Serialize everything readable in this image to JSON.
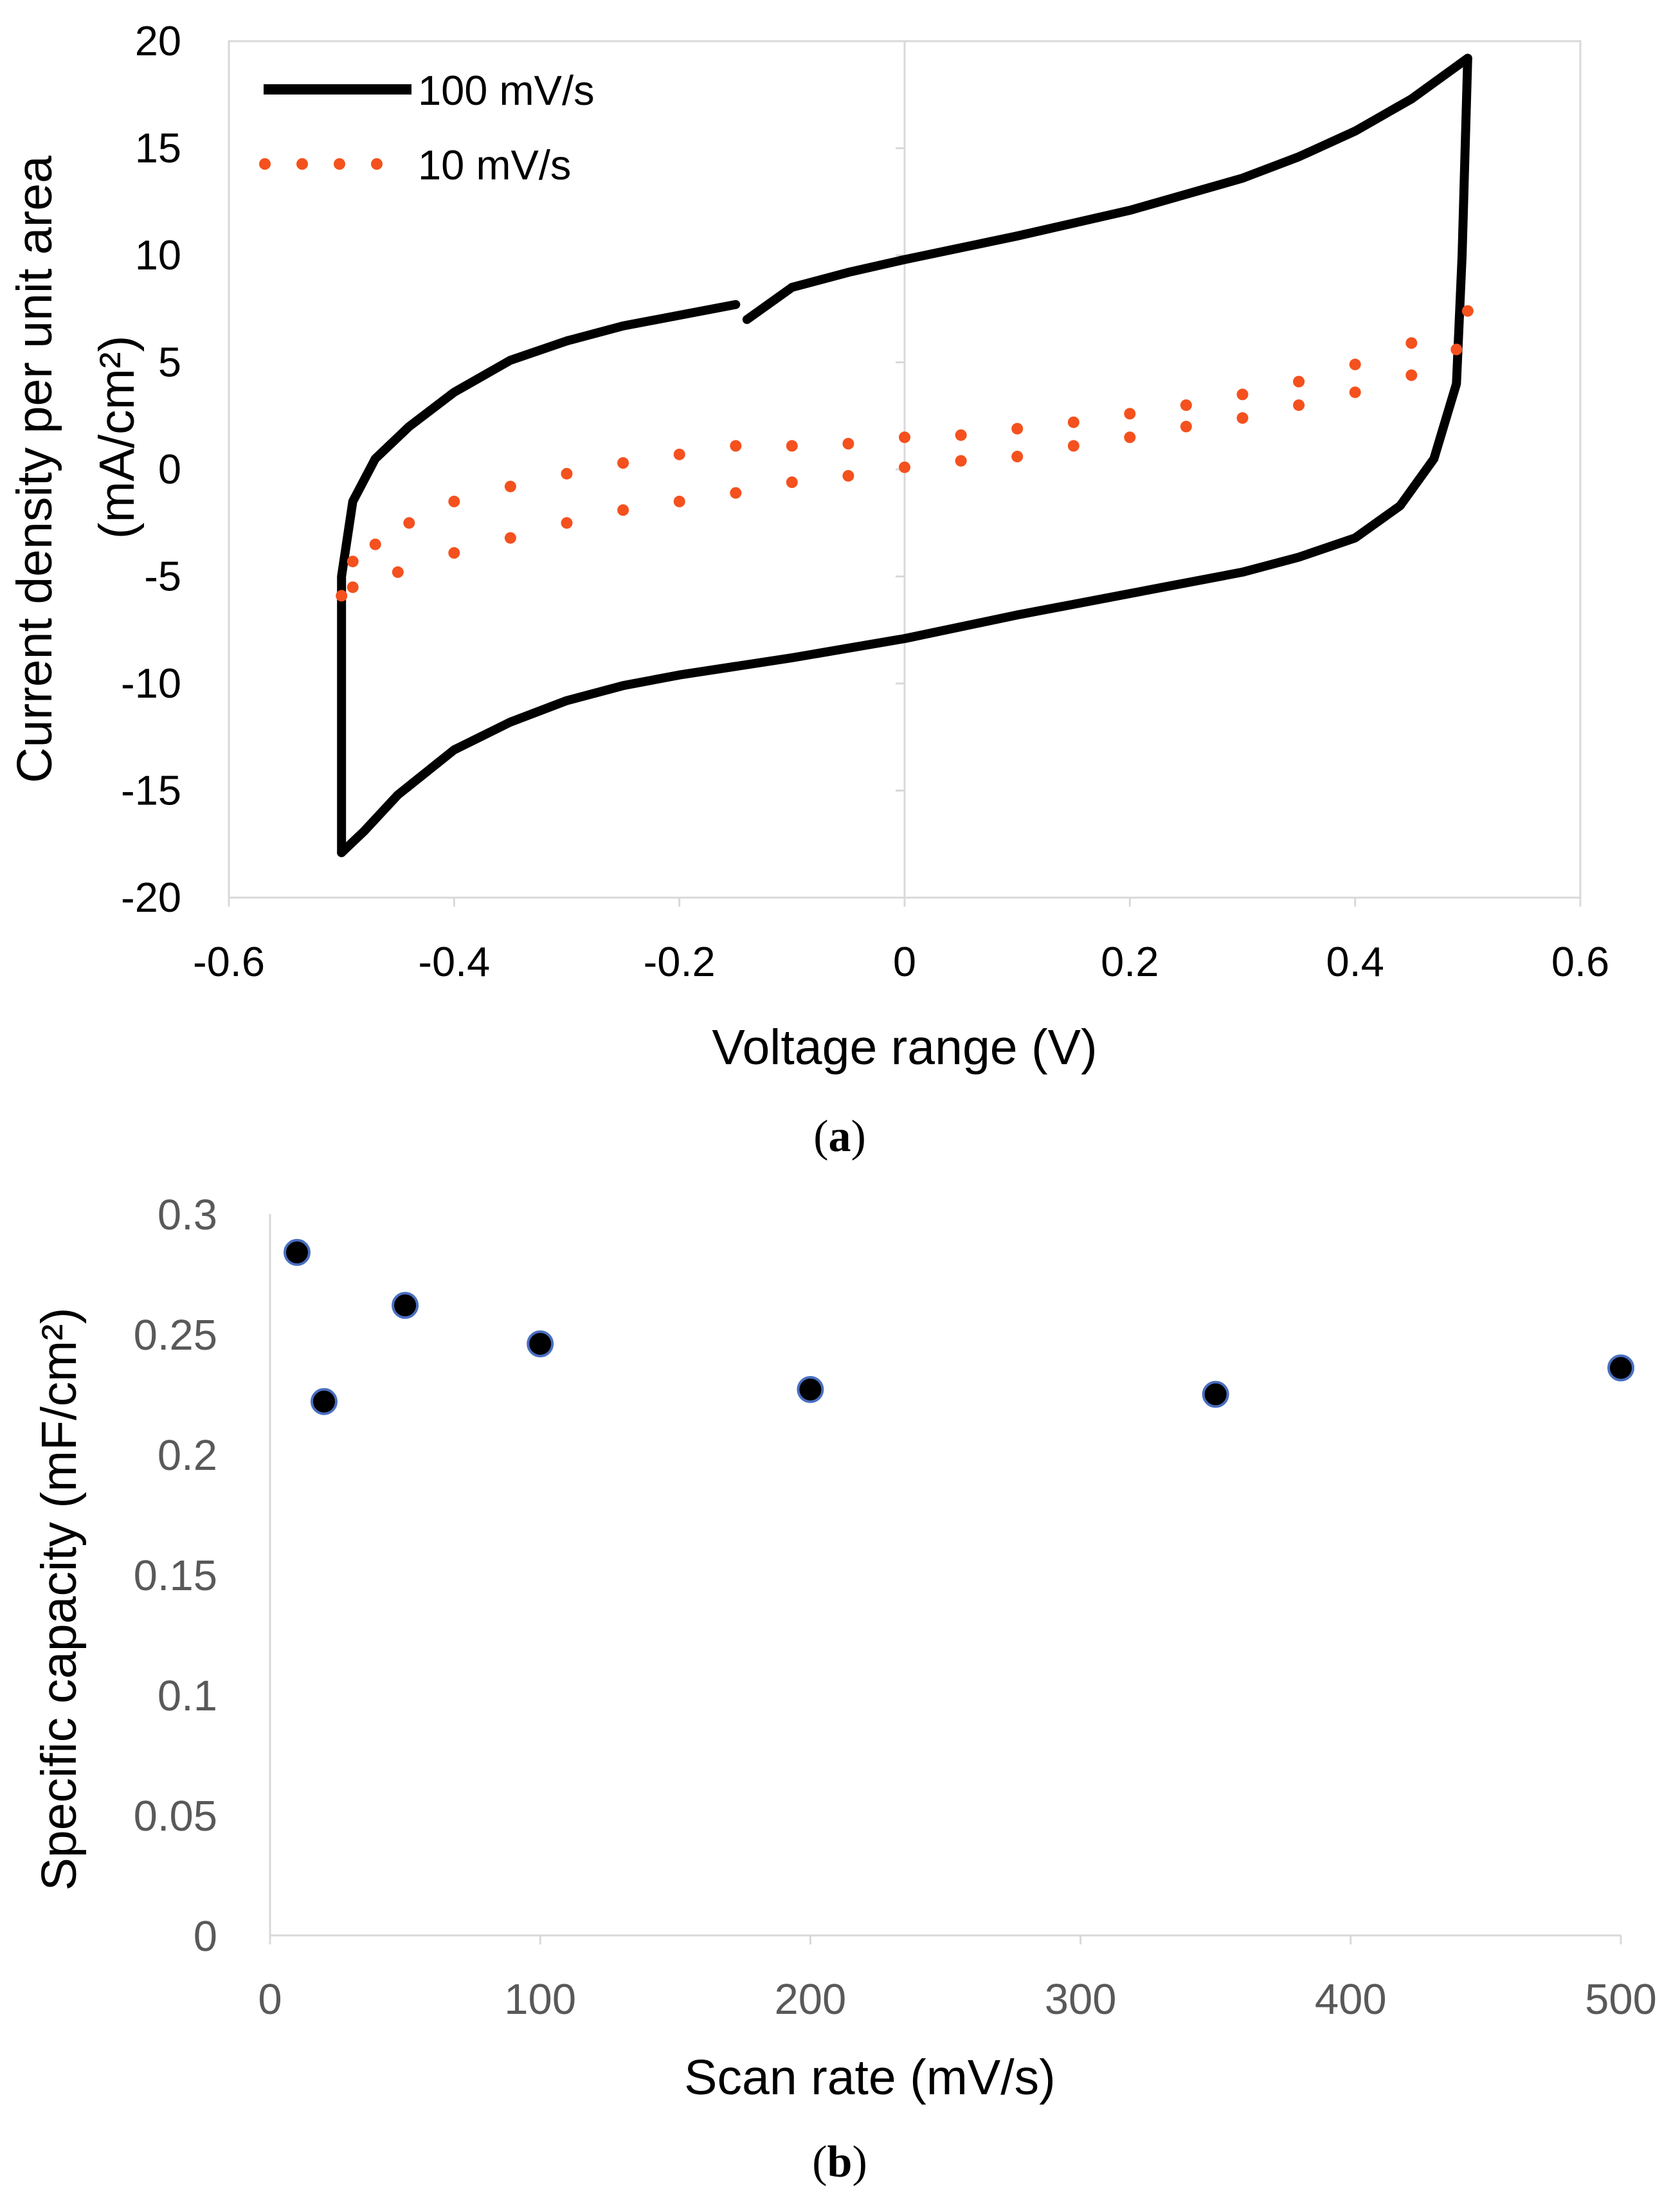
{
  "chart_data": [
    {
      "panel": "a",
      "type": "line",
      "title": "",
      "xlabel": "Voltage range (V)",
      "ylabel_line1": "Current density per unit area",
      "ylabel_line2": "(mA/cm²)",
      "xlim": [
        -0.6,
        0.6
      ],
      "ylim": [
        -20,
        20
      ],
      "xticks": [
        -0.6,
        -0.4,
        -0.2,
        0,
        0.2,
        0.4,
        0.6
      ],
      "xtick_labels": [
        "-0.6",
        "-0.4",
        "-0.2",
        "0",
        "0.2",
        "0.4",
        "0.6"
      ],
      "yticks": [
        -20,
        -15,
        -10,
        -5,
        0,
        5,
        10,
        15,
        20
      ],
      "ytick_labels": [
        "-20",
        "-15",
        "-10",
        "-5",
        "0",
        "5",
        "10",
        "15",
        "20"
      ],
      "grid": false,
      "legend_position": "top-left",
      "series": [
        {
          "name": "100 mV/s",
          "color": "#000000",
          "style": "solid",
          "segments": [
            [
              [
                -0.15,
                7.7
              ],
              [
                -0.2,
                7.2
              ],
              [
                -0.25,
                6.7
              ],
              [
                -0.3,
                6.0
              ],
              [
                -0.35,
                5.1
              ],
              [
                -0.4,
                3.6
              ],
              [
                -0.44,
                2.0
              ],
              [
                -0.47,
                0.5
              ],
              [
                -0.49,
                -1.5
              ],
              [
                -0.5,
                -5.0
              ],
              [
                -0.5,
                -17.9
              ]
            ],
            [
              [
                -0.5,
                -17.9
              ],
              [
                -0.48,
                -16.9
              ],
              [
                -0.45,
                -15.2
              ],
              [
                -0.4,
                -13.1
              ],
              [
                -0.35,
                -11.8
              ],
              [
                -0.3,
                -10.8
              ],
              [
                -0.25,
                -10.1
              ],
              [
                -0.2,
                -9.6
              ],
              [
                -0.1,
                -8.8
              ],
              [
                0.0,
                -7.9
              ],
              [
                0.1,
                -6.8
              ],
              [
                0.2,
                -5.8
              ],
              [
                0.3,
                -4.8
              ],
              [
                0.35,
                -4.1
              ],
              [
                0.4,
                -3.2
              ],
              [
                0.44,
                -1.7
              ],
              [
                0.47,
                0.5
              ],
              [
                0.49,
                4.0
              ],
              [
                0.495,
                10.0
              ],
              [
                0.5,
                19.2
              ]
            ],
            [
              [
                0.5,
                19.2
              ],
              [
                0.45,
                17.3
              ],
              [
                0.4,
                15.8
              ],
              [
                0.35,
                14.6
              ],
              [
                0.3,
                13.6
              ],
              [
                0.2,
                12.1
              ],
              [
                0.1,
                10.9
              ],
              [
                0.0,
                9.8
              ],
              [
                -0.05,
                9.2
              ],
              [
                -0.1,
                8.5
              ],
              [
                -0.14,
                7.0
              ]
            ]
          ]
        },
        {
          "name": "10 mV/s",
          "color": "#f4511e",
          "style": "dotted",
          "points": [
            [
              -0.5,
              -5.9
            ],
            [
              -0.49,
              -4.3
            ],
            [
              -0.47,
              -3.5
            ],
            [
              -0.44,
              -2.5
            ],
            [
              -0.4,
              -1.5
            ],
            [
              -0.35,
              -0.8
            ],
            [
              -0.3,
              -0.2
            ],
            [
              -0.25,
              0.3
            ],
            [
              -0.2,
              0.7
            ],
            [
              -0.15,
              1.1
            ],
            [
              -0.1,
              1.1
            ],
            [
              -0.05,
              1.2
            ],
            [
              0.0,
              1.5
            ],
            [
              0.05,
              1.6
            ],
            [
              0.1,
              1.9
            ],
            [
              0.15,
              2.2
            ],
            [
              0.2,
              2.6
            ],
            [
              0.25,
              3.0
            ],
            [
              0.3,
              3.5
            ],
            [
              0.35,
              4.1
            ],
            [
              0.4,
              4.9
            ],
            [
              0.45,
              5.9
            ],
            [
              0.5,
              7.4
            ],
            [
              0.49,
              5.6
            ],
            [
              0.45,
              4.4
            ],
            [
              0.4,
              3.6
            ],
            [
              0.35,
              3.0
            ],
            [
              0.3,
              2.4
            ],
            [
              0.25,
              2.0
            ],
            [
              0.2,
              1.5
            ],
            [
              0.15,
              1.1
            ],
            [
              0.1,
              0.6
            ],
            [
              0.05,
              0.4
            ],
            [
              0.0,
              0.1
            ],
            [
              -0.05,
              -0.3
            ],
            [
              -0.1,
              -0.6
            ],
            [
              -0.15,
              -1.1
            ],
            [
              -0.2,
              -1.5
            ],
            [
              -0.25,
              -1.9
            ],
            [
              -0.3,
              -2.5
            ],
            [
              -0.35,
              -3.2
            ],
            [
              -0.4,
              -3.9
            ],
            [
              -0.45,
              -4.8
            ],
            [
              -0.49,
              -5.5
            ]
          ]
        }
      ]
    },
    {
      "panel": "b",
      "type": "scatter",
      "title": "",
      "xlabel": "Scan rate (mV/s)",
      "ylabel": "Specific capacity (mF/cm²)",
      "xlim": [
        0,
        500
      ],
      "ylim": [
        0,
        0.3
      ],
      "xticks": [
        0,
        100,
        200,
        300,
        400,
        500
      ],
      "xtick_labels": [
        "0",
        "100",
        "200",
        "300",
        "400",
        "500"
      ],
      "yticks": [
        0,
        0.05,
        0.1,
        0.15,
        0.2,
        0.25,
        0.3
      ],
      "ytick_labels": [
        "0",
        "0.05",
        "0.1",
        "0.15",
        "0.2",
        "0.25",
        "0.3"
      ],
      "grid": false,
      "marker_fill": "#000000",
      "marker_edge": "#4a6fc1",
      "x": [
        10,
        20,
        50,
        100,
        200,
        350,
        500
      ],
      "y": [
        0.284,
        0.222,
        0.262,
        0.246,
        0.227,
        0.225,
        0.236
      ]
    }
  ],
  "panel_labels": {
    "a_open": "(",
    "a_letter": "a",
    "a_close": ")",
    "b_open": "(",
    "b_letter": "b",
    "b_close": ")"
  }
}
